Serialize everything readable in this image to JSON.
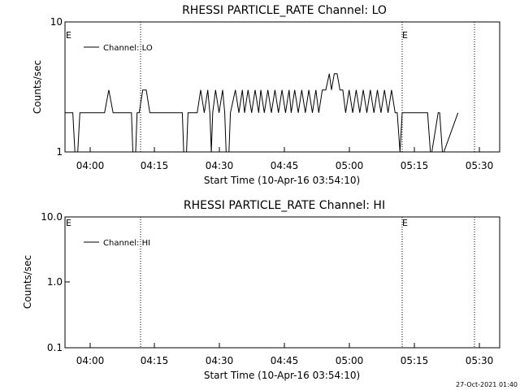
{
  "footer": {
    "timestamp": "27-Oct-2021 01:40"
  },
  "chart_data": [
    {
      "type": "line",
      "title": "RHESSI PARTICLE_RATE Channel: LO",
      "xlabel": "Start Time (10-Apr-16 03:54:10)",
      "ylabel": "Counts/sec",
      "y_scale": "log",
      "xlim": [
        "03:54:10",
        "05:36:40"
      ],
      "ylim": [
        1,
        10
      ],
      "x_ticks": [
        "04:00",
        "04:15",
        "04:30",
        "04:45",
        "05:00",
        "05:15",
        "05:30"
      ],
      "y_ticks": [
        "1",
        "10"
      ],
      "legend": {
        "position": "top-left",
        "entries": [
          "Channel: LO"
        ]
      },
      "event_marks": [
        {
          "time": "03:54:10",
          "label": "E"
        },
        {
          "time": "05:12:10",
          "label": "E"
        }
      ],
      "dotted_vlines": [
        "04:11:40",
        "05:12:10",
        "05:28:40"
      ],
      "series": [
        {
          "name": "Channel: LO",
          "x": [
            "03:54:10",
            "03:56:00",
            "03:56:30",
            "03:57:10",
            "03:57:40",
            "04:03:30",
            "04:04:30",
            "04:05:30",
            "04:06:20",
            "04:09:50",
            "04:10:10",
            "04:10:50",
            "04:11:10",
            "04:11:40",
            "04:12:30",
            "04:13:20",
            "04:14:10",
            "04:15:00",
            "04:15:50",
            "04:16:40",
            "04:17:30",
            "04:18:20",
            "04:21:50",
            "04:22:10",
            "04:22:50",
            "04:23:10",
            "04:25:20",
            "04:26:10",
            "04:27:00",
            "04:27:50",
            "04:28:20",
            "04:28:40",
            "04:29:00",
            "04:29:40",
            "04:30:30",
            "04:31:20",
            "04:31:50",
            "04:32:10",
            "04:32:50",
            "04:33:10",
            "04:34:20",
            "04:35:10",
            "04:36:00",
            "04:36:30",
            "04:37:20",
            "04:38:10",
            "04:39:00",
            "04:39:50",
            "04:40:20",
            "04:41:10",
            "04:42:00",
            "04:42:50",
            "04:43:40",
            "04:44:30",
            "04:45:20",
            "04:46:10",
            "04:47:00",
            "04:47:30",
            "04:48:20",
            "04:49:10",
            "04:50:00",
            "04:50:50",
            "04:51:40",
            "04:52:30",
            "04:53:20",
            "04:54:00",
            "04:54:50",
            "04:55:40",
            "04:56:30",
            "04:57:00",
            "04:57:40",
            "04:58:20",
            "04:59:00",
            "04:59:40",
            "05:00:20",
            "05:01:10",
            "05:02:00",
            "05:02:50",
            "05:03:40",
            "05:04:30",
            "05:05:20",
            "05:06:10",
            "05:07:00",
            "05:07:50",
            "05:08:40",
            "05:09:30",
            "05:10:20",
            "05:11:10",
            "05:12:00",
            "05:12:30",
            "05:13:10",
            "05:13:40",
            "05:19:20",
            "05:19:40",
            "05:20:20",
            "05:20:40",
            "05:22:10",
            "05:22:30",
            "05:23:10",
            "05:23:30",
            "05:26:50"
          ],
          "y": [
            2,
            2,
            1,
            1,
            2,
            2,
            3,
            2,
            2,
            2,
            1,
            1,
            2,
            2,
            3,
            3,
            2,
            2,
            2,
            2,
            2,
            2,
            2,
            1,
            1,
            2,
            2,
            3,
            2,
            3,
            2,
            1,
            2,
            3,
            2,
            3,
            2,
            1,
            1,
            2,
            3,
            2,
            3,
            2,
            3,
            2,
            3,
            2,
            3,
            2,
            3,
            2,
            3,
            2,
            3,
            2,
            3,
            2,
            3,
            2,
            3,
            2,
            3,
            2,
            3,
            2,
            3,
            3,
            4,
            3,
            4,
            4,
            3,
            3,
            2,
            3,
            2,
            3,
            2,
            3,
            2,
            3,
            2,
            3,
            2,
            3,
            2,
            3,
            2,
            2,
            1,
            2,
            2,
            2,
            1,
            1,
            2,
            2,
            1,
            1,
            2
          ]
        }
      ]
    },
    {
      "type": "line",
      "title": "RHESSI PARTICLE_RATE Channel: HI",
      "xlabel": "Start Time (10-Apr-16 03:54:10)",
      "ylabel": "Counts/sec",
      "y_scale": "log",
      "xlim": [
        "03:54:10",
        "05:36:40"
      ],
      "ylim": [
        0.1,
        10
      ],
      "x_ticks": [
        "04:00",
        "04:15",
        "04:30",
        "04:45",
        "05:00",
        "05:15",
        "05:30"
      ],
      "y_ticks": [
        "0.1",
        "1.0",
        "10.0"
      ],
      "legend": {
        "position": "top-left",
        "entries": [
          "Channel: HI"
        ]
      },
      "event_marks": [
        {
          "time": "03:54:10",
          "label": "E"
        },
        {
          "time": "05:12:10",
          "label": "E"
        }
      ],
      "dotted_vlines": [
        "04:11:40",
        "05:12:10",
        "05:28:40"
      ],
      "series": [
        {
          "name": "Channel: HI",
          "x": [],
          "y": []
        }
      ]
    }
  ]
}
